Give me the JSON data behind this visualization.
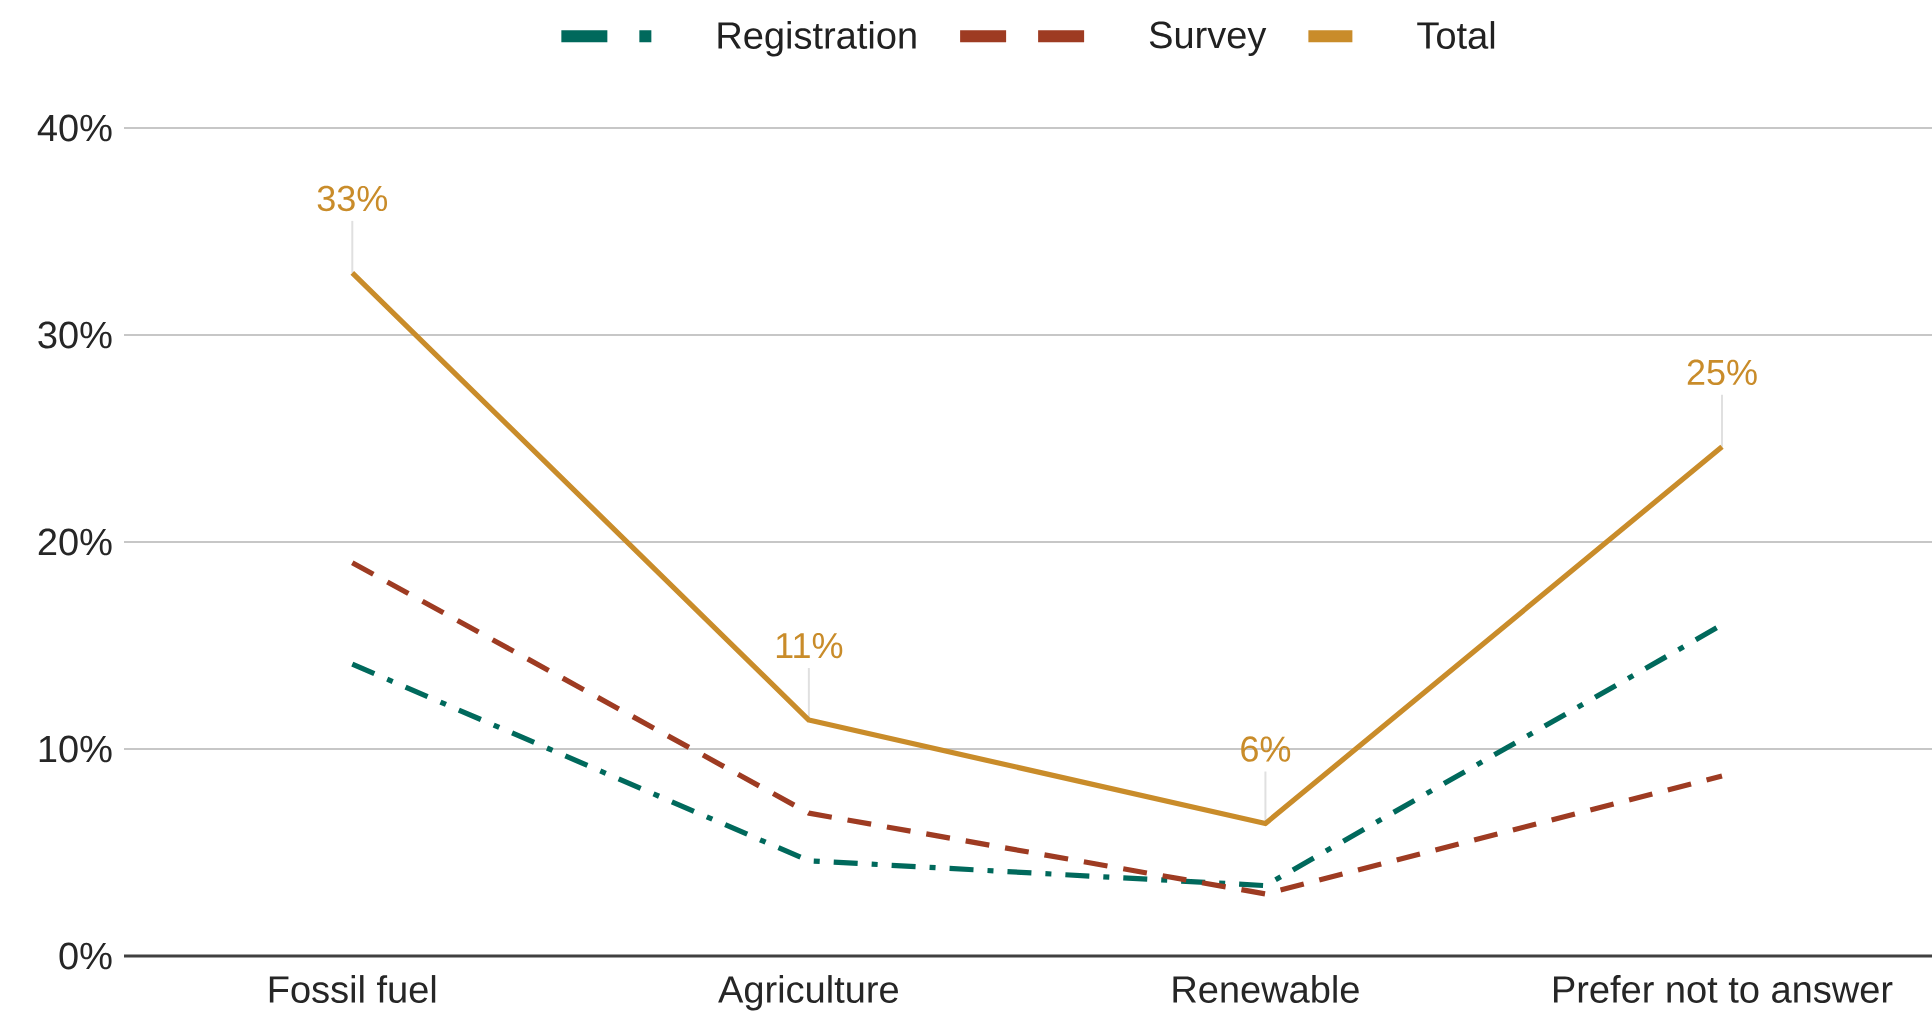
{
  "chart_data": {
    "type": "line",
    "categories": [
      "Fossil fuel",
      "Agriculture",
      "Renewable",
      "Prefer not to answer"
    ],
    "ylim": [
      0,
      40
    ],
    "yticks": [
      {
        "value": 0,
        "label": "0%"
      },
      {
        "value": 10,
        "label": "10%"
      },
      {
        "value": 20,
        "label": "20%"
      },
      {
        "value": 30,
        "label": "30%"
      },
      {
        "value": 40,
        "label": "40%"
      }
    ],
    "grid": "y",
    "legend": "top",
    "series": [
      {
        "name": "Registration",
        "color": "#00695c",
        "line_style": "dashdot",
        "values": [
          14.1,
          4.6,
          3.4,
          16.0
        ]
      },
      {
        "name": "Survey",
        "color": "#9e3b22",
        "line_style": "dashed",
        "values": [
          19.0,
          6.9,
          3.0,
          8.7
        ]
      },
      {
        "name": "Total",
        "color": "#c98c2a",
        "line_style": "solid",
        "values": [
          33,
          11.4,
          6.4,
          24.6
        ],
        "value_labels": [
          "33%",
          "11%",
          "6%",
          "25%"
        ]
      }
    ]
  }
}
